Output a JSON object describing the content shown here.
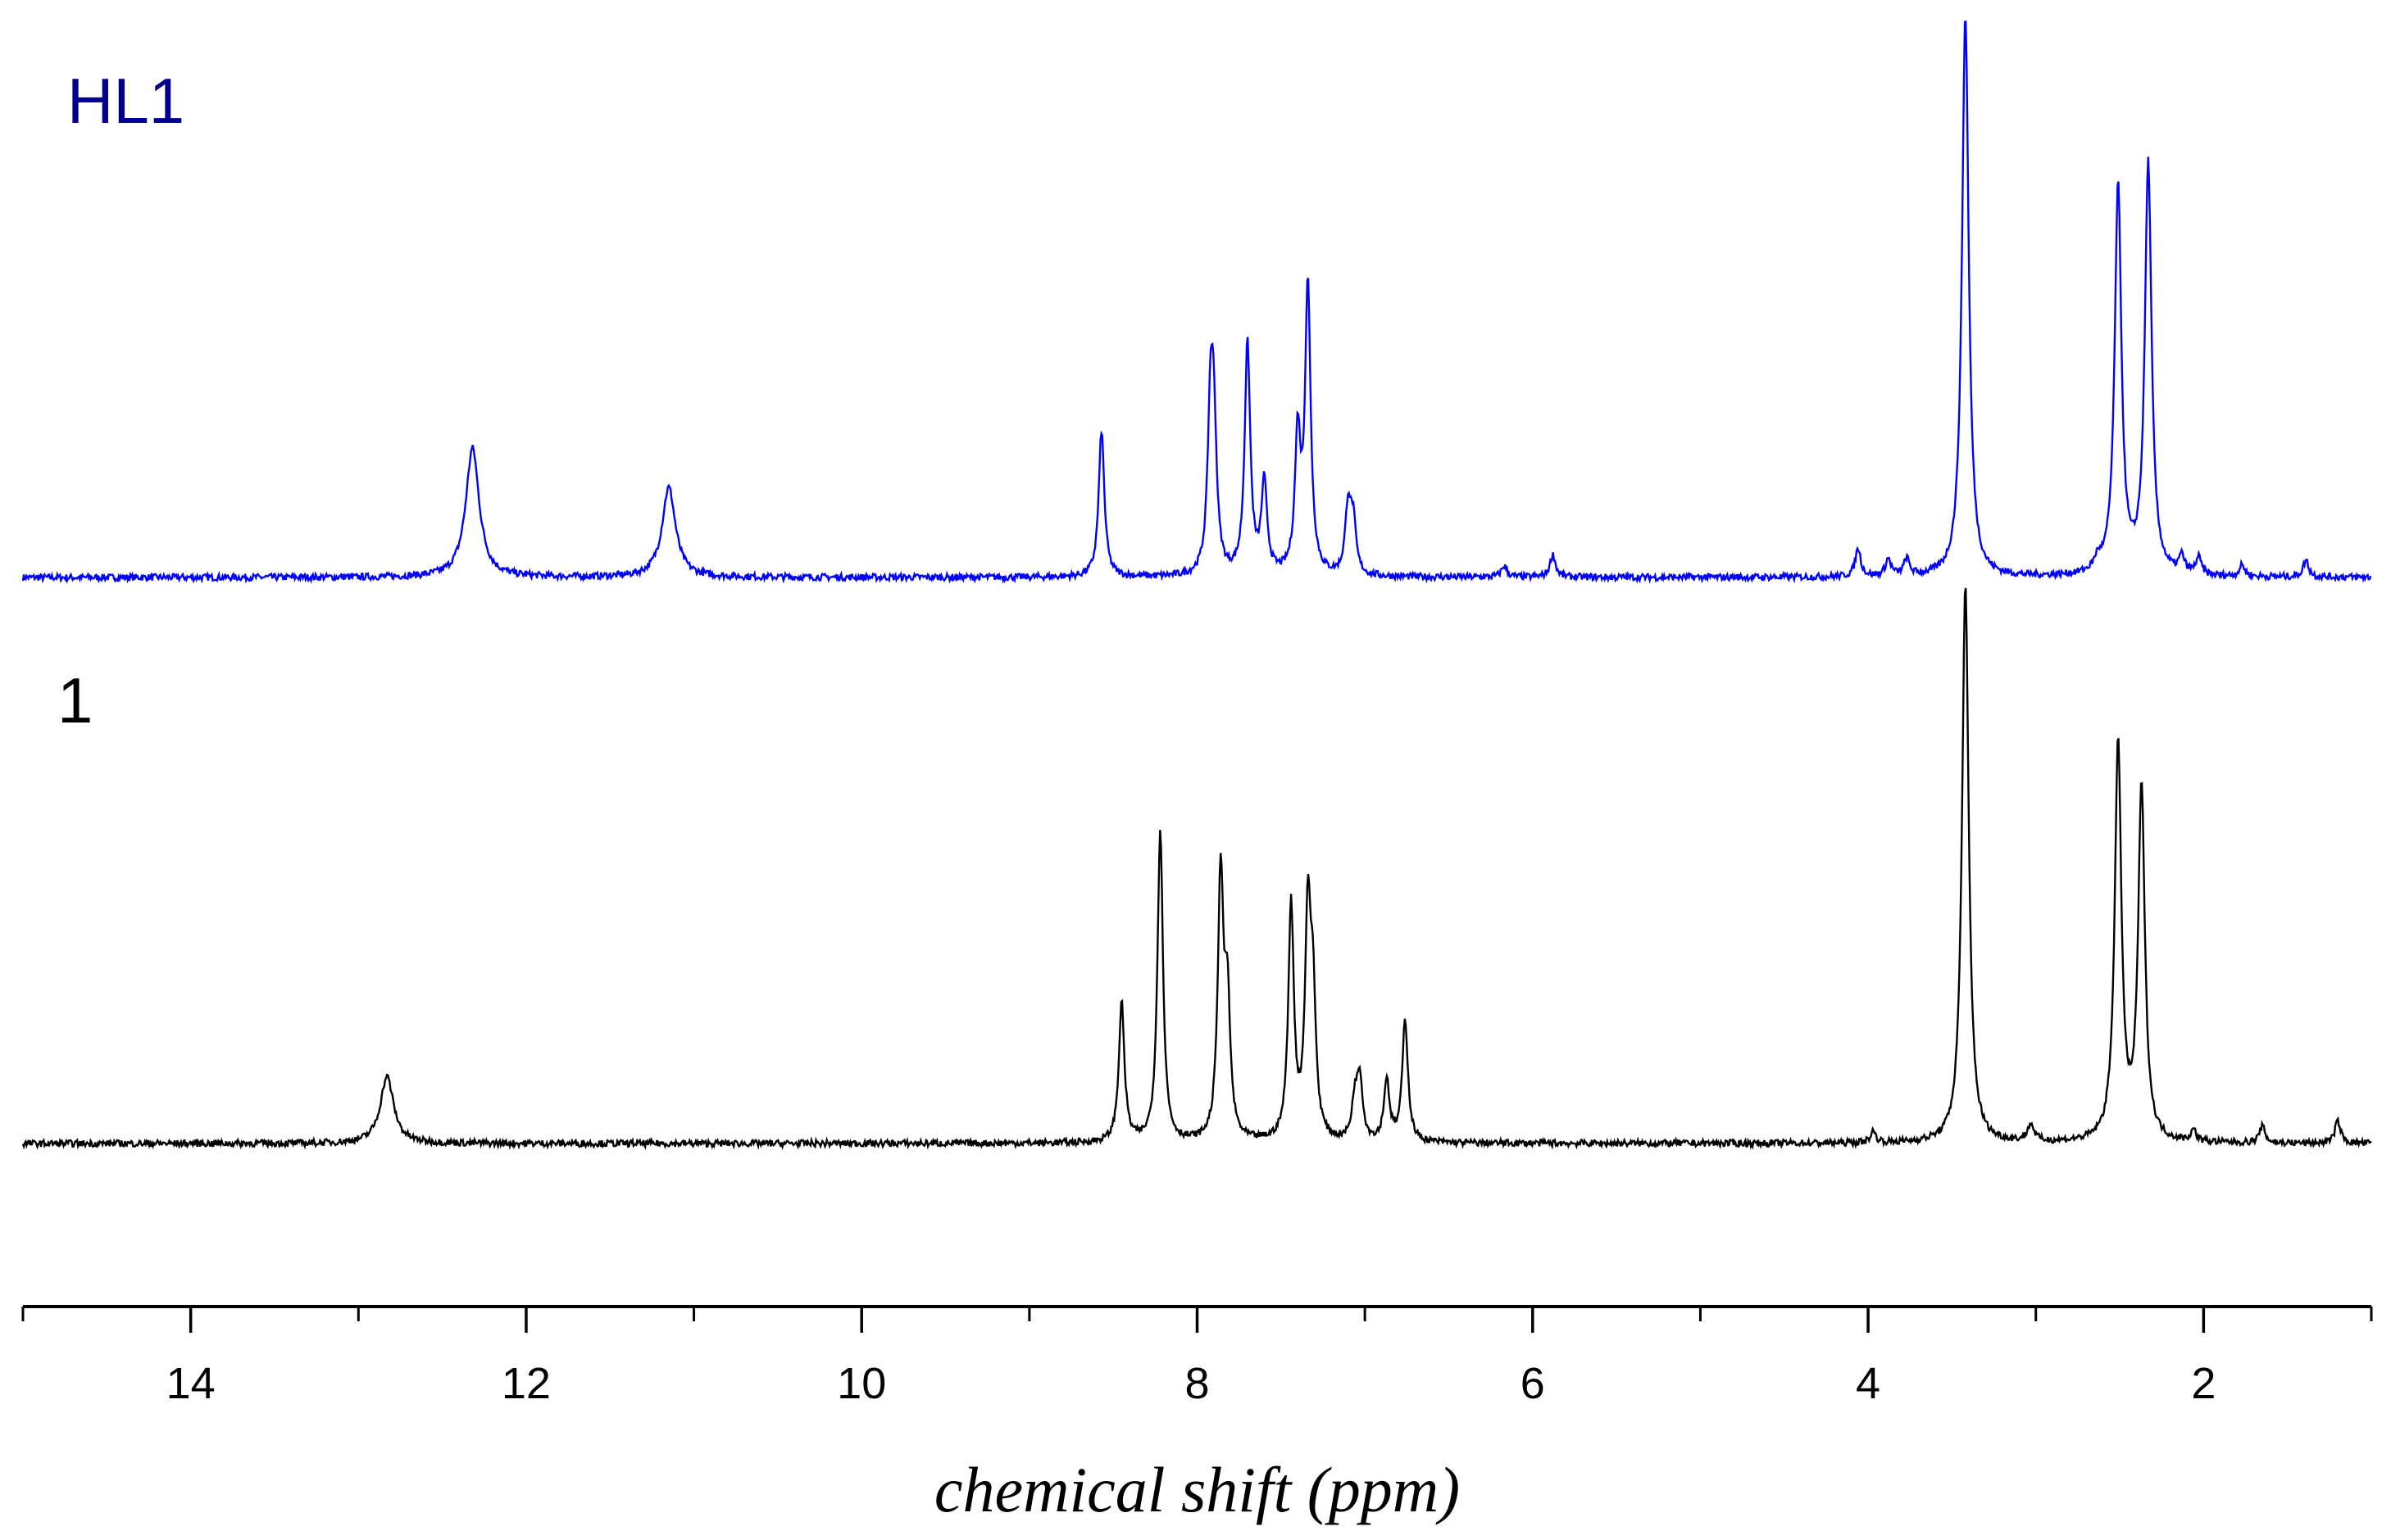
{
  "chart_data": {
    "type": "line",
    "title": "",
    "xlabel": "chemical shift (ppm)",
    "ylabel": "",
    "xlim": [
      15.0,
      1.0
    ],
    "x_reversed": true,
    "major_ticks": [
      14,
      12,
      10,
      8,
      6,
      4,
      2
    ],
    "tick_labels": [
      "14",
      "12",
      "10",
      "8",
      "6",
      "4",
      "2"
    ],
    "minor_ticks": [
      15,
      13,
      11,
      9,
      7,
      5,
      3,
      1
    ],
    "grid": false,
    "legend": "none",
    "y_units": "relative intensity (each trace normalized to its tallest peak = 1)",
    "series": [
      {
        "name": "HL1",
        "color": "#0000ff",
        "label_color": "#00008b",
        "peaks": [
          {
            "ppm": 12.32,
            "intensity": 0.23
          },
          {
            "ppm": 11.15,
            "intensity": 0.16
          },
          {
            "ppm": 8.57,
            "intensity": 0.26
          },
          {
            "ppm": 7.92,
            "intensity": 0.28
          },
          {
            "ppm": 7.9,
            "intensity": 0.23
          },
          {
            "ppm": 7.7,
            "intensity": 0.41
          },
          {
            "ppm": 7.6,
            "intensity": 0.16
          },
          {
            "ppm": 7.4,
            "intensity": 0.24
          },
          {
            "ppm": 7.34,
            "intensity": 0.51
          },
          {
            "ppm": 7.1,
            "intensity": 0.12
          },
          {
            "ppm": 7.07,
            "intensity": 0.09
          },
          {
            "ppm": 6.17,
            "intensity": 0.02
          },
          {
            "ppm": 5.88,
            "intensity": 0.04
          },
          {
            "ppm": 4.06,
            "intensity": 0.05
          },
          {
            "ppm": 3.88,
            "intensity": 0.03
          },
          {
            "ppm": 3.77,
            "intensity": 0.03
          },
          {
            "ppm": 3.42,
            "intensity": 1.0
          },
          {
            "ppm": 2.63,
            "intensity": 0.02
          },
          {
            "ppm": 2.51,
            "intensity": 0.69
          },
          {
            "ppm": 2.33,
            "intensity": 0.73
          },
          {
            "ppm": 2.13,
            "intensity": 0.03
          },
          {
            "ppm": 2.03,
            "intensity": 0.03
          },
          {
            "ppm": 1.77,
            "intensity": 0.02
          },
          {
            "ppm": 1.39,
            "intensity": 0.03
          }
        ]
      },
      {
        "name": "1",
        "color": "#000000",
        "label_color": "#000000",
        "peaks": [
          {
            "ppm": 12.83,
            "intensity": 0.12
          },
          {
            "ppm": 8.45,
            "intensity": 0.25
          },
          {
            "ppm": 8.22,
            "intensity": 0.56
          },
          {
            "ppm": 7.86,
            "intensity": 0.47
          },
          {
            "ppm": 7.82,
            "intensity": 0.24
          },
          {
            "ppm": 7.44,
            "intensity": 0.42
          },
          {
            "ppm": 7.34,
            "intensity": 0.39
          },
          {
            "ppm": 7.31,
            "intensity": 0.24
          },
          {
            "ppm": 7.06,
            "intensity": 0.07
          },
          {
            "ppm": 7.03,
            "intensity": 0.11
          },
          {
            "ppm": 6.87,
            "intensity": 0.11
          },
          {
            "ppm": 6.76,
            "intensity": 0.22
          },
          {
            "ppm": 3.97,
            "intensity": 0.02
          },
          {
            "ppm": 3.42,
            "intensity": 1.0
          },
          {
            "ppm": 3.03,
            "intensity": 0.03
          },
          {
            "ppm": 2.51,
            "intensity": 0.71
          },
          {
            "ppm": 2.37,
            "intensity": 0.63
          },
          {
            "ppm": 2.06,
            "intensity": 0.02
          },
          {
            "ppm": 1.65,
            "intensity": 0.03
          },
          {
            "ppm": 1.2,
            "intensity": 0.04
          }
        ]
      }
    ]
  }
}
